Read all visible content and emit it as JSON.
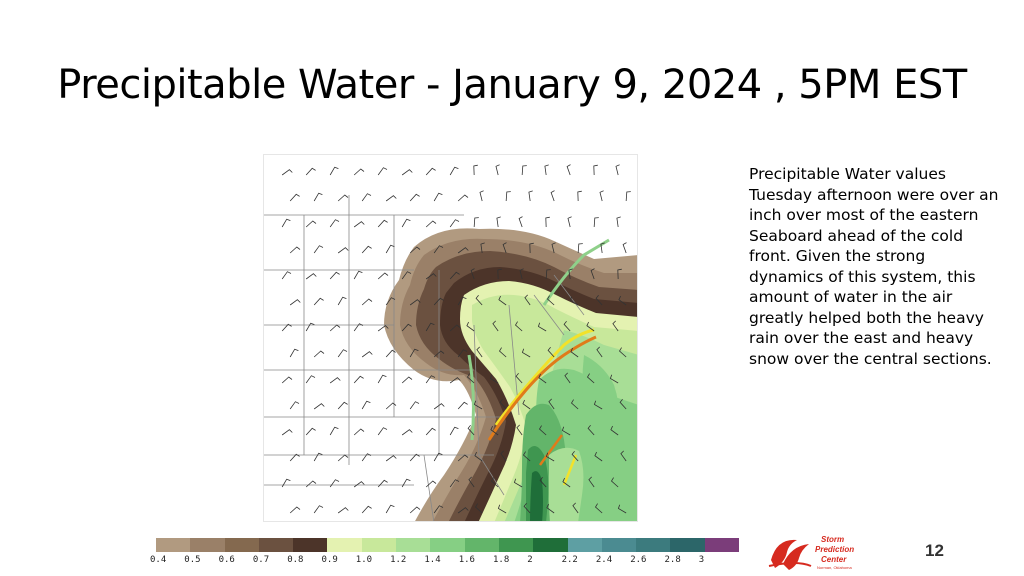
{
  "slide": {
    "title": "Precipitable Water  - January 9, 2024 , 5PM EST",
    "caption": "Precipitable Water values Tuesday afternoon were over an inch over most of the eastern Seaboard ahead of the cold front.  Given the strong dynamics of this system, this amount of water in the air greatly helped both the heavy rain over the east and heavy snow over the central sections.",
    "page_number": "12"
  },
  "map": {
    "variable": "precipitable water",
    "front_colors": {
      "yellow": "#f2e22a",
      "orange": "#e07b1a",
      "green_boundary": "#8fd08a"
    },
    "icons": [
      "wind-barb-icon",
      "cold-front-line",
      "state-boundary-lines"
    ]
  },
  "colorbar": {
    "labels": [
      "0.4",
      "0.5",
      "0.6",
      "0.7",
      "0.8",
      "0.9",
      "1.0",
      "1.2",
      "1.4",
      "1.6",
      "1.8",
      "2",
      "2.2",
      "2.4",
      "2.6",
      "2.8",
      "3"
    ],
    "colors": [
      "#b19a80",
      "#9a8068",
      "#84694f",
      "#6b5140",
      "#4c3429",
      "#e4f2b1",
      "#c8e89b",
      "#a8de96",
      "#86cf84",
      "#63b56a",
      "#3f9650",
      "#1f6e39",
      "#5e9fa3",
      "#4b8b91",
      "#3c7b7e",
      "#2c6669",
      "#7b3d7a"
    ]
  },
  "logo": {
    "line1": "Storm",
    "line2": "Prediction",
    "line3": "Center",
    "line4": "Norman, Oklahoma"
  }
}
